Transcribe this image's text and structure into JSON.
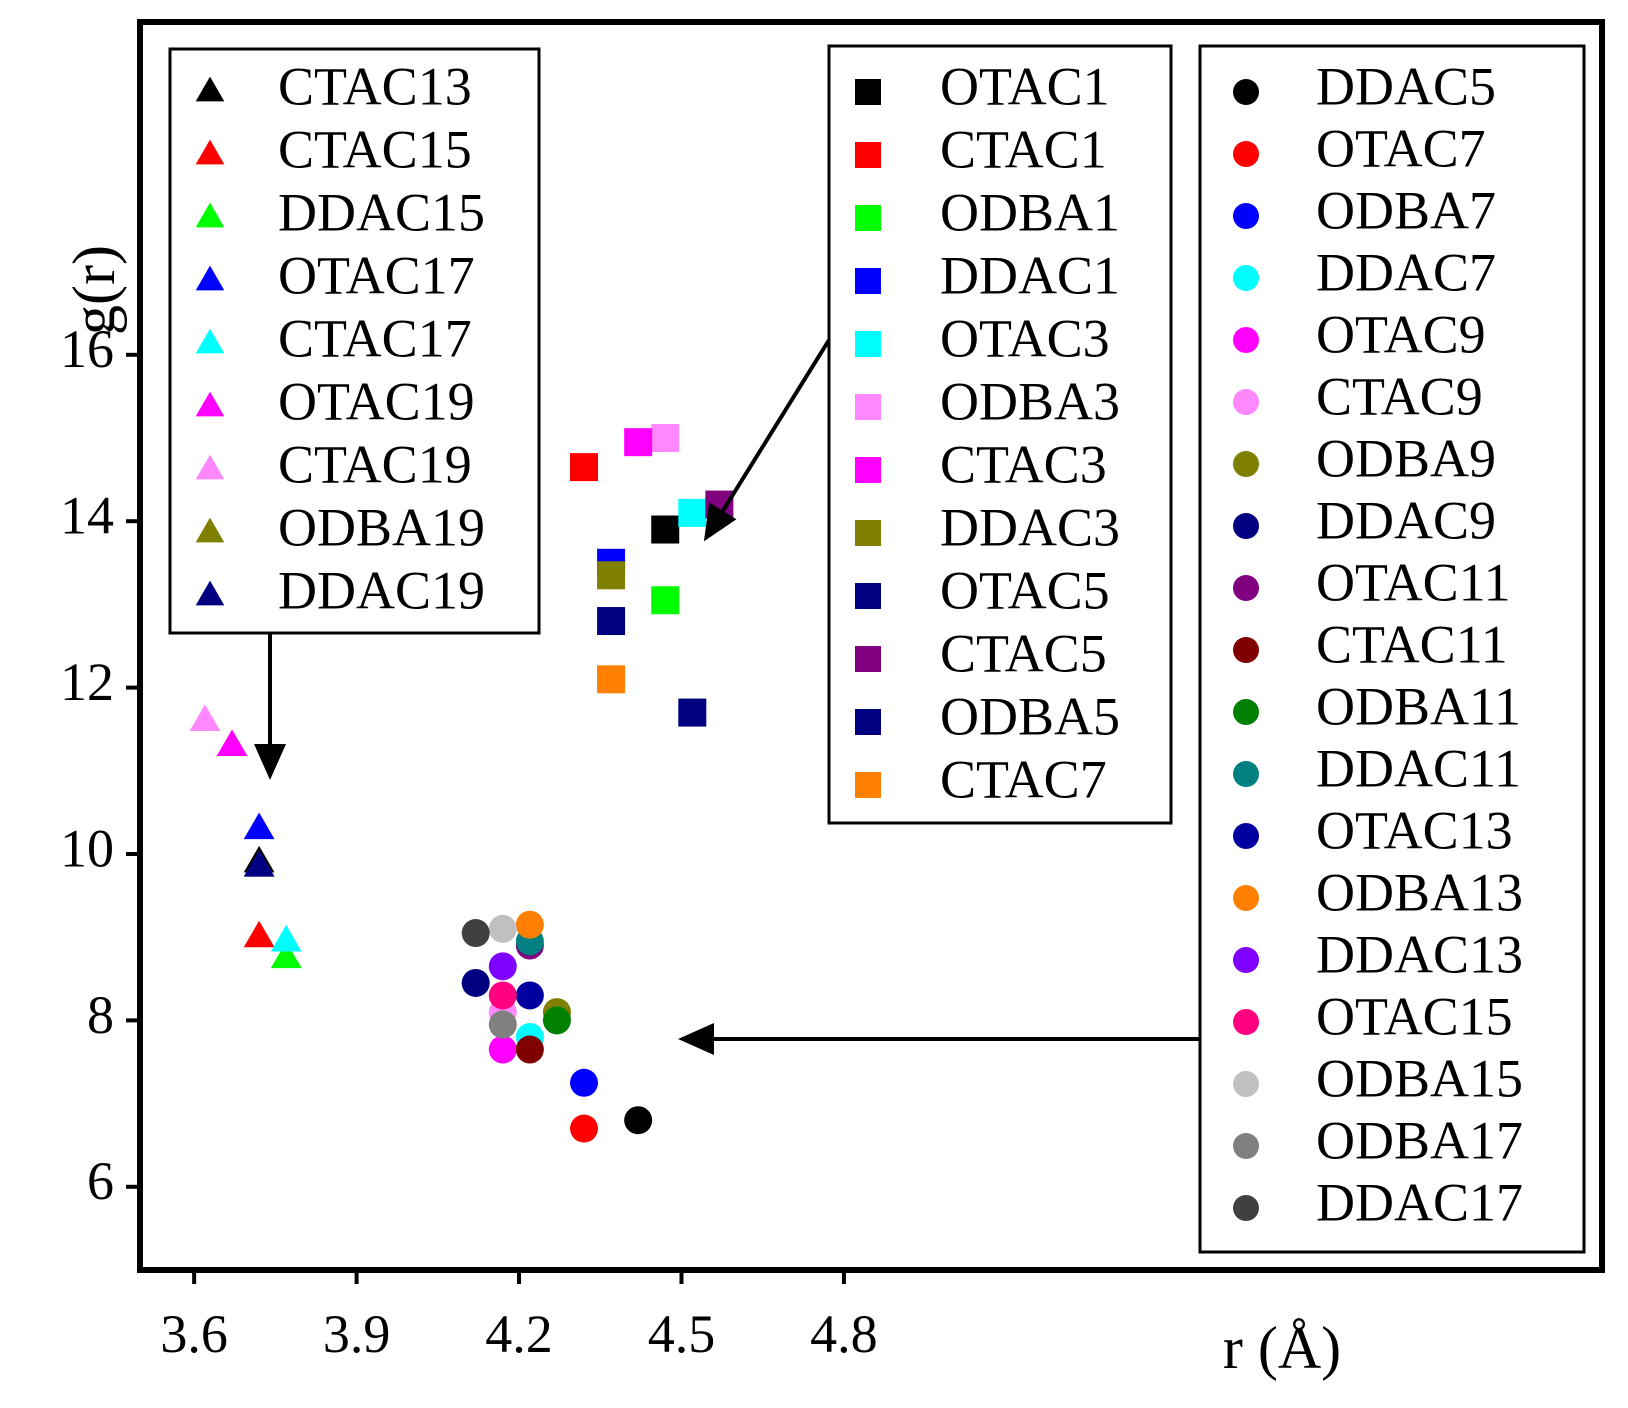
{
  "chart_data": {
    "type": "scatter",
    "title": "",
    "xlabel": "r (Å)",
    "ylabel": "g(r)",
    "xlim": [
      3.5,
      6.2
    ],
    "ylim": [
      5.0,
      20.0
    ],
    "x_ticks": [
      3.6,
      3.9,
      4.2,
      4.5,
      4.8
    ],
    "x_tick_labels": [
      "3.6",
      "3.9",
      "4.2",
      "4.5",
      "4.8"
    ],
    "y_ticks": [
      6,
      8,
      10,
      12,
      14,
      16
    ],
    "y_tick_labels": [
      "6",
      "8",
      "10",
      "12",
      "14",
      "16"
    ],
    "grid": false,
    "series": [
      {
        "name": "CTAC13",
        "marker": "triangle",
        "color": "#000000",
        "x": [
          3.72
        ],
        "y": [
          9.9
        ]
      },
      {
        "name": "CTAC15",
        "marker": "triangle",
        "color": "#ff0000",
        "x": [
          3.72
        ],
        "y": [
          9.0
        ]
      },
      {
        "name": "DDAC15",
        "marker": "triangle",
        "color": "#00ff00",
        "x": [
          3.77
        ],
        "y": [
          8.75
        ]
      },
      {
        "name": "OTAC17",
        "marker": "triangle",
        "color": "#0000ff",
        "x": [
          3.72
        ],
        "y": [
          10.3
        ]
      },
      {
        "name": "CTAC17",
        "marker": "triangle",
        "color": "#00ffff",
        "x": [
          3.77
        ],
        "y": [
          8.95
        ]
      },
      {
        "name": "OTAC19",
        "marker": "triangle",
        "color": "#ff00ff",
        "x": [
          3.67
        ],
        "y": [
          11.3
        ]
      },
      {
        "name": "CTAC19",
        "marker": "triangle",
        "color": "#ff88ff",
        "x": [
          3.62
        ],
        "y": [
          11.6
        ]
      },
      {
        "name": "ODBA19",
        "marker": "triangle",
        "color": "#808000",
        "x": [
          3.72
        ],
        "y": [
          9.85
        ]
      },
      {
        "name": "DDAC19",
        "marker": "triangle",
        "color": "#000080",
        "x": [
          3.72
        ],
        "y": [
          9.85
        ]
      },
      {
        "name": "OTAC1",
        "marker": "square",
        "color": "#000000",
        "x": [
          4.47
        ],
        "y": [
          13.9
        ]
      },
      {
        "name": "CTAC1",
        "marker": "square",
        "color": "#ff0000",
        "x": [
          4.32
        ],
        "y": [
          14.65
        ]
      },
      {
        "name": "ODBA1",
        "marker": "square",
        "color": "#00ff00",
        "x": [
          4.47
        ],
        "y": [
          13.05
        ]
      },
      {
        "name": "DDAC1",
        "marker": "square",
        "color": "#0000ff",
        "x": [
          4.37
        ],
        "y": [
          13.5
        ]
      },
      {
        "name": "OTAC3",
        "marker": "square",
        "color": "#00ffff",
        "x": [
          4.52
        ],
        "y": [
          14.1
        ]
      },
      {
        "name": "ODBA3",
        "marker": "square",
        "color": "#ff88ff",
        "x": [
          4.47
        ],
        "y": [
          15.0
        ]
      },
      {
        "name": "CTAC3",
        "marker": "square",
        "color": "#ff00ff",
        "x": [
          4.42
        ],
        "y": [
          14.95
        ]
      },
      {
        "name": "DDAC3",
        "marker": "square",
        "color": "#808000",
        "x": [
          4.37
        ],
        "y": [
          13.35
        ]
      },
      {
        "name": "OTAC5",
        "marker": "square",
        "color": "#000080",
        "x": [
          4.37
        ],
        "y": [
          12.8
        ]
      },
      {
        "name": "CTAC5",
        "marker": "square",
        "color": "#800080",
        "x": [
          4.57
        ],
        "y": [
          14.2
        ]
      },
      {
        "name": "ODBA5",
        "marker": "square",
        "color": "#000080",
        "x": [
          4.52
        ],
        "y": [
          11.7
        ]
      },
      {
        "name": "CTAC7",
        "marker": "square",
        "color": "#ff8000",
        "x": [
          4.37
        ],
        "y": [
          12.1
        ]
      },
      {
        "name": "DDAC5",
        "marker": "circle",
        "color": "#000000",
        "x": [
          4.42
        ],
        "y": [
          6.8
        ]
      },
      {
        "name": "OTAC7",
        "marker": "circle",
        "color": "#ff0000",
        "x": [
          4.32
        ],
        "y": [
          6.7
        ]
      },
      {
        "name": "ODBA7",
        "marker": "circle",
        "color": "#0000ff",
        "x": [
          4.32
        ],
        "y": [
          7.25
        ]
      },
      {
        "name": "DDAC7",
        "marker": "circle",
        "color": "#00ffff",
        "x": [
          4.22
        ],
        "y": [
          7.8
        ]
      },
      {
        "name": "OTAC9",
        "marker": "circle",
        "color": "#ff00ff",
        "x": [
          4.17
        ],
        "y": [
          7.65
        ]
      },
      {
        "name": "CTAC9",
        "marker": "circle",
        "color": "#ff88ff",
        "x": [
          4.17
        ],
        "y": [
          8.1
        ]
      },
      {
        "name": "ODBA9",
        "marker": "circle",
        "color": "#808000",
        "x": [
          4.27
        ],
        "y": [
          8.1
        ]
      },
      {
        "name": "DDAC9",
        "marker": "circle",
        "color": "#000080",
        "x": [
          4.12
        ],
        "y": [
          8.45
        ]
      },
      {
        "name": "OTAC11",
        "marker": "circle",
        "color": "#800080",
        "x": [
          4.22
        ],
        "y": [
          8.9
        ]
      },
      {
        "name": "CTAC11",
        "marker": "circle",
        "color": "#800000",
        "x": [
          4.22
        ],
        "y": [
          7.65
        ]
      },
      {
        "name": "ODBA11",
        "marker": "circle",
        "color": "#008000",
        "x": [
          4.27
        ],
        "y": [
          8.0
        ]
      },
      {
        "name": "DDAC11",
        "marker": "circle",
        "color": "#008080",
        "x": [
          4.22
        ],
        "y": [
          8.95
        ]
      },
      {
        "name": "OTAC13",
        "marker": "circle",
        "color": "#0000a0",
        "x": [
          4.22
        ],
        "y": [
          8.3
        ]
      },
      {
        "name": "ODBA13",
        "marker": "circle",
        "color": "#ff8000",
        "x": [
          4.22
        ],
        "y": [
          9.15
        ]
      },
      {
        "name": "DDAC13",
        "marker": "circle",
        "color": "#8000ff",
        "x": [
          4.17
        ],
        "y": [
          8.65
        ]
      },
      {
        "name": "OTAC15",
        "marker": "circle",
        "color": "#ff0080",
        "x": [
          4.17
        ],
        "y": [
          8.3
        ]
      },
      {
        "name": "ODBA15",
        "marker": "circle",
        "color": "#c0c0c0",
        "x": [
          4.17
        ],
        "y": [
          9.1
        ]
      },
      {
        "name": "ODBA17",
        "marker": "circle",
        "color": "#808080",
        "x": [
          4.17
        ],
        "y": [
          7.95
        ]
      },
      {
        "name": "DDAC17",
        "marker": "circle",
        "color": "#404040",
        "x": [
          4.12
        ],
        "y": [
          9.05
        ]
      }
    ],
    "legends": [
      {
        "name": "triangles",
        "entries": [
          "CTAC13",
          "CTAC15",
          "DDAC15",
          "OTAC17",
          "CTAC17",
          "OTAC19",
          "CTAC19",
          "ODBA19",
          "DDAC19"
        ]
      },
      {
        "name": "squares",
        "entries": [
          "OTAC1",
          "CTAC1",
          "ODBA1",
          "DDAC1",
          "OTAC3",
          "ODBA3",
          "CTAC3",
          "DDAC3",
          "OTAC5",
          "CTAC5",
          "ODBA5",
          "CTAC7"
        ]
      },
      {
        "name": "circles",
        "entries": [
          "DDAC5",
          "OTAC7",
          "ODBA7",
          "DDAC7",
          "OTAC9",
          "CTAC9",
          "ODBA9",
          "DDAC9",
          "OTAC11",
          "CTAC11",
          "ODBA11",
          "DDAC11",
          "OTAC13",
          "ODBA13",
          "DDAC13",
          "OTAC15",
          "ODBA15",
          "ODBA17",
          "DDAC17"
        ]
      }
    ]
  }
}
